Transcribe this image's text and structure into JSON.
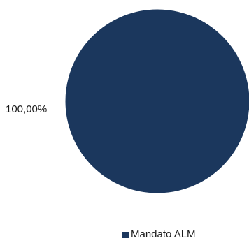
{
  "chart_data": {
    "type": "pie",
    "title": "",
    "slices": [
      {
        "label": "Mandato ALM",
        "value": 100.0,
        "color": "#1b375d"
      }
    ],
    "data_labels": [
      "100,00%"
    ],
    "legend": {
      "position": "bottom",
      "entries": [
        "Mandato ALM"
      ]
    }
  }
}
